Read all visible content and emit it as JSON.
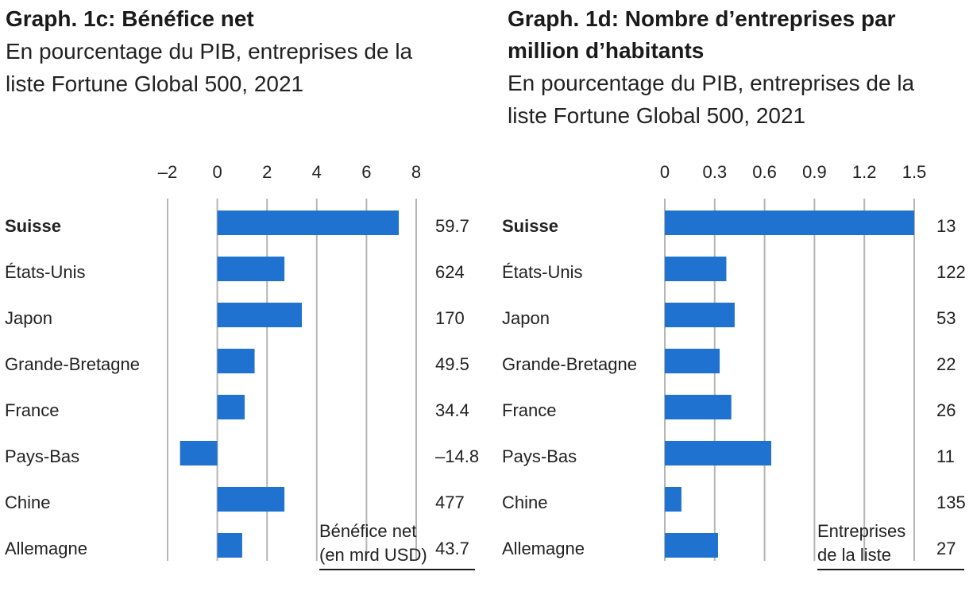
{
  "chart_data": [
    {
      "id": "c",
      "type": "bar",
      "orientation": "horizontal",
      "title": "Graph. 1c: Bénéfice net",
      "subtitle_lines": [
        "En pourcentage du PIB, entreprises de la",
        "liste Fortune Global 500, 2021"
      ],
      "categories": [
        "Suisse",
        "États-Unis",
        "Japon",
        "Grande-Bretagne",
        "France",
        "Pays-Bas",
        "Chine",
        "Allemagne"
      ],
      "highlight": "Suisse",
      "values": [
        7.3,
        2.7,
        3.4,
        1.5,
        1.1,
        -1.5,
        2.7,
        1.0
      ],
      "side_labels": [
        "59.7",
        "624",
        "170",
        "49.5",
        "34.4",
        "–14.8",
        "477",
        "43.7"
      ],
      "side_label_caption": [
        "Bénéfice net",
        "(en mrd USD)"
      ],
      "xlim": [
        -2,
        8
      ],
      "ticks": [
        -2,
        0,
        2,
        4,
        6,
        8
      ],
      "tick_labels": [
        "–2",
        "0",
        "2",
        "4",
        "6",
        "8"
      ],
      "grid": true,
      "bar_color": "#1f72d0"
    },
    {
      "id": "d",
      "type": "bar",
      "orientation": "horizontal",
      "title_lines": [
        "Graph. 1d: Nombre d’entreprises par",
        "million d’habitants"
      ],
      "subtitle_lines": [
        "En pourcentage du PIB, entreprises de la",
        "liste Fortune Global 500, 2021"
      ],
      "categories": [
        "Suisse",
        "États-Unis",
        "Japon",
        "Grande-Bretagne",
        "France",
        "Pays-Bas",
        "Chine",
        "Allemagne"
      ],
      "highlight": "Suisse",
      "values": [
        1.5,
        0.37,
        0.42,
        0.33,
        0.4,
        0.64,
        0.1,
        0.32
      ],
      "side_labels": [
        "13",
        "122",
        "53",
        "22",
        "26",
        "11",
        "135",
        "27"
      ],
      "side_label_caption": [
        "Entreprises",
        "de la liste"
      ],
      "xlim": [
        0,
        1.5
      ],
      "ticks": [
        0,
        0.3,
        0.6,
        0.9,
        1.2,
        1.5
      ],
      "tick_labels": [
        "0",
        "0.3",
        "0.6",
        "0.9",
        "1.2",
        "1.5"
      ],
      "grid": true,
      "bar_color": "#1f72d0"
    }
  ]
}
